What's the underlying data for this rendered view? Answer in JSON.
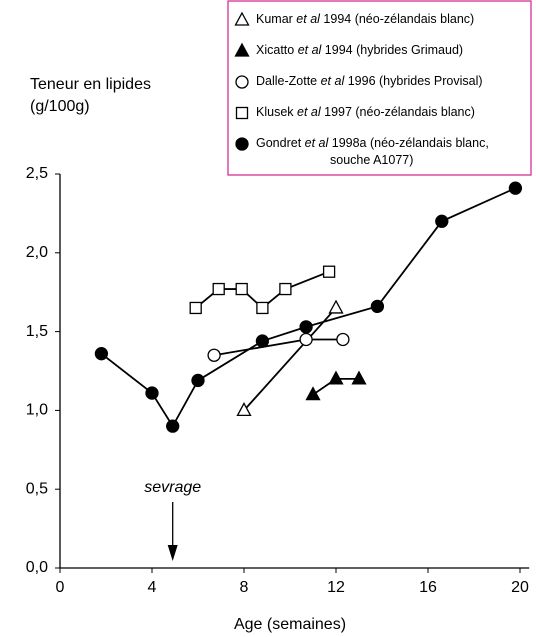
{
  "chart_data": {
    "type": "line",
    "ylabel": [
      "Teneur en lipides",
      "(g/100g)"
    ],
    "xlabel": "Age (semaines)",
    "xlim": [
      0,
      20.4
    ],
    "xticks": [
      0,
      4,
      8,
      12,
      16,
      20
    ],
    "ylim": [
      0,
      2.5
    ],
    "yticks": [
      {
        "value": 0,
        "label": "0,0"
      },
      {
        "value": 0.5,
        "label": "0,5"
      },
      {
        "value": 1,
        "label": "1,0"
      },
      {
        "value": 1.5,
        "label": "1,5"
      },
      {
        "value": 2,
        "label": "2,0"
      },
      {
        "value": 2.5,
        "label": "2,5"
      }
    ],
    "legend": "top-right",
    "annotation": {
      "text": "sevrage",
      "x": 4.9
    },
    "series": [
      {
        "name": "Kumar et al 1994 (néo-zélandais blanc)",
        "color": "#000000",
        "marker": "triangle-open",
        "x": [
          8,
          12
        ],
        "values": [
          1.0,
          1.65
        ]
      },
      {
        "name": "Xicatto et al 1994 (hybrides Grimaud)",
        "color": "#000000",
        "marker": "triangle-filled",
        "x": [
          11,
          12,
          13
        ],
        "values": [
          1.1,
          1.2,
          1.2
        ]
      },
      {
        "name": "Dalle-Zotte et al 1996 (hybrides Provisal)",
        "color": "#000000",
        "marker": "circle-open",
        "x": [
          6.7,
          10.7,
          12.3
        ],
        "values": [
          1.35,
          1.45,
          1.45
        ]
      },
      {
        "name": "Klusek et al 1997 (néo-zélandais blanc)",
        "color": "#000000",
        "marker": "square-open",
        "x": [
          5.9,
          6.9,
          7.9,
          8.8,
          9.8,
          11.7
        ],
        "values": [
          1.65,
          1.77,
          1.77,
          1.65,
          1.77,
          1.88
        ]
      },
      {
        "name": "Gondret et al 1998a (néo-zélandais blanc, souche A1077)",
        "color": "#000000",
        "marker": "circle-filled",
        "x": [
          1.8,
          4.0,
          4.9,
          6.0,
          8.8,
          10.7,
          13.8,
          16.6,
          19.8
        ],
        "values": [
          1.36,
          1.11,
          0.9,
          1.19,
          1.44,
          1.53,
          1.66,
          2.2,
          2.41
        ]
      }
    ]
  }
}
